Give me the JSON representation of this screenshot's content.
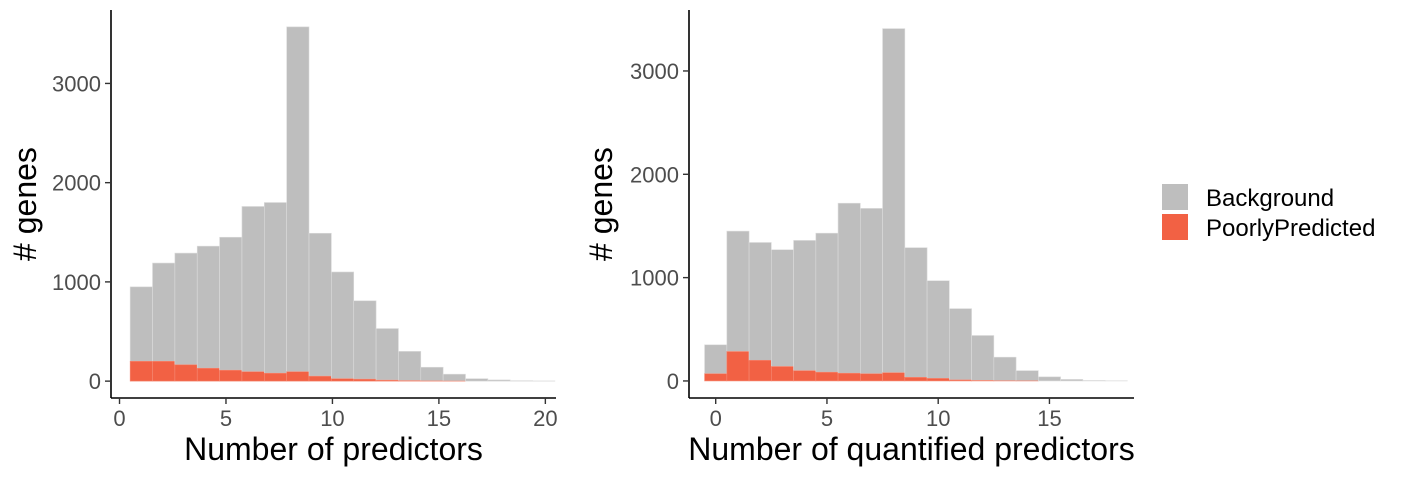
{
  "colors": {
    "background_series": "#bebebe",
    "poorly_series": "#f26144",
    "axis": "#000000",
    "tick_text": "#4d4d4d"
  },
  "legend": {
    "items": [
      {
        "label": "Background",
        "color": "#bebebe"
      },
      {
        "label": "PoorlyPredicted",
        "color": "#f26144"
      }
    ]
  },
  "chart_data": [
    {
      "type": "bar",
      "xlabel": "Number of predictors",
      "ylabel": "# genes",
      "xlim": [
        -0.4,
        20.5
      ],
      "ylim": [
        -170,
        3740
      ],
      "xticks": [
        0,
        5,
        10,
        15,
        20
      ],
      "yticks": [
        0,
        1000,
        2000,
        3000
      ],
      "grid": false,
      "bin_width": 1.05,
      "bin_starts": [
        0.5,
        1.55,
        2.6,
        3.65,
        4.7,
        5.75,
        6.8,
        7.85,
        8.9,
        9.95,
        11.0,
        12.05,
        13.1,
        14.15,
        15.2,
        16.25,
        17.3,
        18.35,
        19.4
      ],
      "series": [
        {
          "name": "Background",
          "values": [
            950,
            1190,
            1290,
            1360,
            1450,
            1760,
            1800,
            3570,
            1490,
            1100,
            810,
            530,
            300,
            140,
            70,
            25,
            12,
            5,
            2
          ]
        },
        {
          "name": "PoorlyPredicted",
          "values": [
            200,
            200,
            165,
            130,
            110,
            95,
            80,
            95,
            50,
            25,
            20,
            10,
            5,
            2,
            1,
            0,
            0,
            0,
            0
          ]
        }
      ]
    },
    {
      "type": "bar",
      "xlabel": "Number of quantified predictors",
      "ylabel": "# genes",
      "xlim": [
        -1.2,
        18.8
      ],
      "ylim": [
        -165,
        3590
      ],
      "xticks": [
        0,
        5,
        10,
        15
      ],
      "yticks": [
        0,
        1000,
        2000,
        3000
      ],
      "grid": false,
      "bin_width": 1.0,
      "bin_starts": [
        -0.5,
        0.5,
        1.5,
        2.5,
        3.5,
        4.5,
        5.5,
        6.5,
        7.5,
        8.5,
        9.5,
        10.5,
        11.5,
        12.5,
        13.5,
        14.5,
        15.5,
        16.5,
        17.5
      ],
      "series": [
        {
          "name": "Background",
          "values": [
            350,
            1450,
            1340,
            1270,
            1360,
            1430,
            1720,
            1670,
            3410,
            1290,
            970,
            700,
            440,
            230,
            100,
            40,
            15,
            5,
            2
          ]
        },
        {
          "name": "PoorlyPredicted",
          "values": [
            70,
            285,
            200,
            140,
            100,
            85,
            75,
            70,
            80,
            35,
            25,
            10,
            5,
            2,
            1,
            0,
            0,
            0,
            0
          ]
        }
      ]
    }
  ]
}
